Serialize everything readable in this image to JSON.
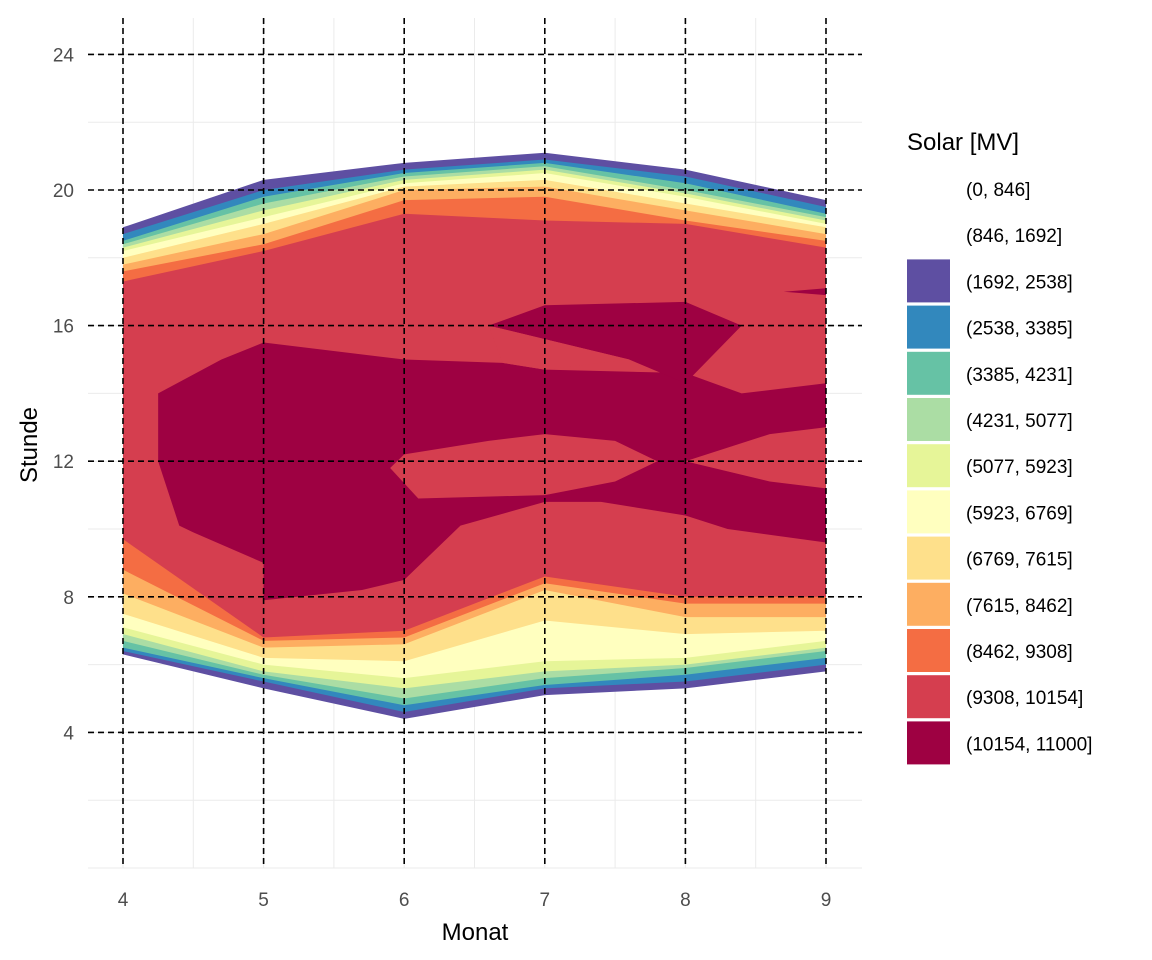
{
  "chart_data": {
    "type": "contour",
    "xlabel": "Monat",
    "ylabel": "Stunde",
    "x_ticks": [
      4,
      5,
      6,
      7,
      8,
      9
    ],
    "y_ticks": [
      4,
      8,
      12,
      16,
      20,
      24
    ],
    "xlim": [
      3.75,
      9.25
    ],
    "ylim": [
      0,
      24.9
    ],
    "grid": true,
    "reference_lines": {
      "style": "dashed",
      "x": [
        4,
        5,
        6,
        7,
        8,
        9
      ],
      "y": [
        4,
        8,
        12,
        16,
        20,
        24
      ]
    },
    "legend": {
      "title": "Solar [MV]",
      "position": "right",
      "bins": [
        {
          "label": "(0, 846]",
          "color": "#9E0142",
          "shown": false
        },
        {
          "label": "(846, 1692]",
          "color": "#9E0142",
          "shown": false
        },
        {
          "label": "(1692, 2538]",
          "color": "#5E4FA2"
        },
        {
          "label": "(2538, 3385]",
          "color": "#3288BD"
        },
        {
          "label": "(3385, 4231]",
          "color": "#66C2A5"
        },
        {
          "label": "(4231, 5077]",
          "color": "#ABDDA4"
        },
        {
          "label": "(5077, 5923]",
          "color": "#E6F598"
        },
        {
          "label": "(5923, 6769]",
          "color": "#FFFFBF"
        },
        {
          "label": "(6769, 7615]",
          "color": "#FEE08B"
        },
        {
          "label": "(7615, 8462]",
          "color": "#FDAE61"
        },
        {
          "label": "(8462, 9308]",
          "color": "#F46D43"
        },
        {
          "label": "(9308, 10154]",
          "color": "#D53E4F"
        },
        {
          "label": "(10154, 11000]",
          "color": "#9E0142"
        }
      ]
    },
    "months": [
      4,
      5,
      6,
      7,
      8,
      9
    ],
    "outer_boundary": {
      "sunset_hour": [
        18.9,
        20.3,
        20.8,
        21.1,
        20.6,
        19.7
      ],
      "sunrise_hour": [
        6.3,
        5.3,
        4.4,
        5.1,
        5.3,
        5.8
      ]
    },
    "regions": [
      {
        "bin": "(1692, 2538]",
        "upper": [
          18.9,
          20.3,
          20.8,
          21.1,
          20.6,
          19.7
        ],
        "lower": [
          6.3,
          5.3,
          4.4,
          5.1,
          5.3,
          5.8
        ]
      },
      {
        "bin": "(2538, 3385]",
        "upper": [
          18.7,
          20.0,
          20.6,
          20.9,
          20.4,
          19.5
        ],
        "lower": [
          6.4,
          5.5,
          4.6,
          5.3,
          5.5,
          6.0
        ]
      },
      {
        "bin": "(3385, 4231]",
        "upper": [
          18.5,
          19.8,
          20.5,
          20.8,
          20.2,
          19.3
        ],
        "lower": [
          6.5,
          5.6,
          4.8,
          5.4,
          5.7,
          6.2
        ]
      },
      {
        "bin": "(4231, 5077]",
        "upper": [
          18.4,
          19.6,
          20.4,
          20.7,
          20.0,
          19.2
        ],
        "lower": [
          6.7,
          5.7,
          5.0,
          5.6,
          5.9,
          6.4
        ]
      },
      {
        "bin": "(5077, 5923]",
        "upper": [
          18.3,
          19.4,
          20.3,
          20.6,
          19.9,
          19.1
        ],
        "lower": [
          6.9,
          5.8,
          5.3,
          5.8,
          6.0,
          6.5
        ]
      },
      {
        "bin": "(5923, 6769]",
        "upper": [
          18.2,
          19.2,
          20.2,
          20.5,
          19.8,
          19.0
        ],
        "lower": [
          7.1,
          6.0,
          5.6,
          6.1,
          6.2,
          6.7
        ]
      },
      {
        "bin": "(6769, 7615]",
        "upper": [
          18.0,
          19.0,
          20.1,
          20.3,
          19.6,
          18.9
        ],
        "lower": [
          7.5,
          6.2,
          6.1,
          7.3,
          6.9,
          7.0
        ]
      },
      {
        "bin": "(7615, 8462]",
        "upper": [
          17.8,
          18.7,
          20.0,
          20.1,
          19.4,
          18.7
        ],
        "lower": [
          8.1,
          6.5,
          6.6,
          8.2,
          7.4,
          7.4
        ]
      },
      {
        "bin": "(8462, 9308]",
        "upper": [
          17.6,
          18.4,
          19.7,
          19.8,
          19.1,
          18.5
        ],
        "lower": [
          8.8,
          6.7,
          6.8,
          8.4,
          7.8,
          7.8
        ]
      },
      {
        "bin": "(9308, 10154]",
        "upper": [
          17.3,
          18.2,
          19.3,
          19.1,
          19.0,
          18.3
        ],
        "lower": [
          9.7,
          6.8,
          7.0,
          8.6,
          8.0,
          8.0
        ]
      }
    ],
    "core_regions": [
      {
        "bin": "(10154, 11000]",
        "points": [
          [
            4.25,
            14.0
          ],
          [
            4.7,
            15.0
          ],
          [
            5.0,
            15.5
          ],
          [
            6.0,
            15.0
          ],
          [
            6.7,
            14.9
          ],
          [
            7.0,
            14.7
          ],
          [
            8.0,
            14.6
          ],
          [
            8.4,
            14.0
          ],
          [
            9.0,
            14.3
          ],
          [
            9.0,
            9.6
          ],
          [
            8.3,
            10.0
          ],
          [
            8.0,
            10.4
          ],
          [
            7.4,
            10.8
          ],
          [
            7.0,
            10.8
          ],
          [
            6.4,
            10.1
          ],
          [
            6.0,
            8.5
          ],
          [
            5.7,
            8.2
          ],
          [
            5.0,
            7.9
          ],
          [
            5.0,
            9.0
          ],
          [
            4.5,
            9.9
          ],
          [
            4.4,
            10.1
          ],
          [
            4.25,
            12.0
          ],
          [
            4.25,
            12.9
          ]
        ]
      },
      {
        "bin": "(10154, 11000]",
        "points": [
          [
            6.6,
            16.0
          ],
          [
            7.0,
            16.6
          ],
          [
            8.0,
            16.7
          ],
          [
            8.4,
            16.0
          ],
          [
            8.0,
            14.3
          ],
          [
            7.6,
            15.0
          ]
        ]
      },
      {
        "bin": "(9308, 10154]",
        "points": [
          [
            6.0,
            12.2
          ],
          [
            6.6,
            12.6
          ],
          [
            7.0,
            12.8
          ],
          [
            7.5,
            12.6
          ],
          [
            7.8,
            12.0
          ],
          [
            7.5,
            11.4
          ],
          [
            7.0,
            11.0
          ],
          [
            6.1,
            10.9
          ],
          [
            5.9,
            11.8
          ]
        ]
      },
      {
        "bin": "(9308, 10154]",
        "points": [
          [
            8.0,
            12.0
          ],
          [
            8.6,
            12.8
          ],
          [
            9.0,
            13.0
          ],
          [
            9.0,
            11.2
          ],
          [
            8.6,
            11.4
          ]
        ]
      },
      {
        "bin": "(9308, 10154]",
        "points": [
          [
            6.6,
            16.0
          ],
          [
            7.0,
            15.6
          ],
          [
            7.6,
            15.0
          ],
          [
            7.0,
            14.7
          ],
          [
            6.7,
            14.9
          ]
        ]
      },
      {
        "bin": "(10154, 11000]",
        "points": [
          [
            8.7,
            17.0
          ],
          [
            9.0,
            17.1
          ],
          [
            9.0,
            16.9
          ]
        ]
      }
    ]
  }
}
